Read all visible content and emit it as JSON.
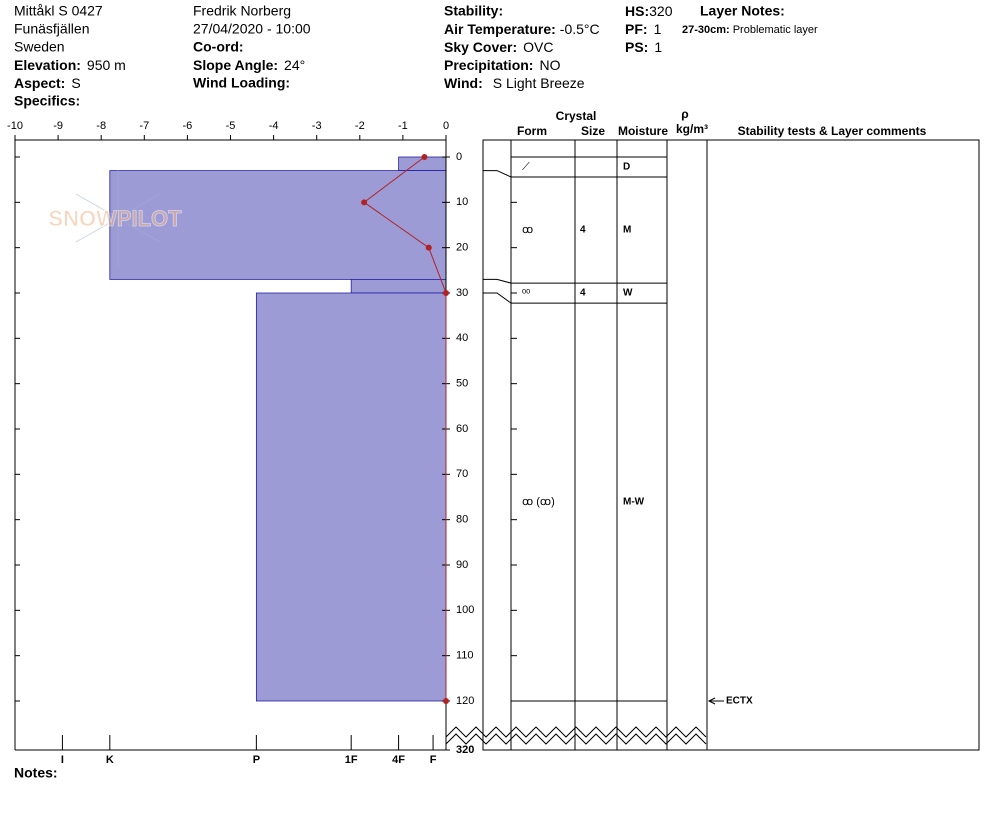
{
  "header": {
    "site": "Mittåkl S 0427",
    "location": "Funäsfjällen",
    "country": "Sweden",
    "elevation": {
      "label": "Elevation:",
      "value": "950 m"
    },
    "aspect": {
      "label": "Aspect:",
      "value": "S"
    },
    "specifics": {
      "label": "Specifics:"
    },
    "observer": "Fredrik Norberg",
    "datetime": "27/04/2020 - 10:00",
    "coord": {
      "label": "Co-ord:"
    },
    "slope_angle": {
      "label": "Slope Angle:",
      "value": "24°"
    },
    "wind_loading": {
      "label": "Wind Loading:"
    },
    "stability": {
      "label": "Stability:"
    },
    "air_temperature": {
      "label": "Air Temperature:",
      "value": "-0.5°C"
    },
    "sky_cover": {
      "label": "Sky Cover:",
      "value": "OVC"
    },
    "precipitation": {
      "label": "Precipitation:",
      "value": "NO"
    },
    "wind": {
      "label": "Wind:",
      "value": "S Light Breeze"
    },
    "hs": {
      "label": "HS:",
      "value": "320"
    },
    "pf": {
      "label": "PF:",
      "value": "1"
    },
    "ps": {
      "label": "PS:",
      "value": "1"
    },
    "layer_notes": {
      "title": "Layer Notes:",
      "items": [
        {
          "range": "27-30cm:",
          "text": "Problematic layer"
        }
      ]
    }
  },
  "logo": "SNOWPILOT",
  "notes": {
    "label": "Notes:"
  },
  "chart_data": {
    "type": "snowprofile",
    "xlim": [
      -10,
      0
    ],
    "xticks": [
      -10,
      -9,
      -8,
      -7,
      -6,
      -5,
      -4,
      -3,
      -2,
      -1,
      0
    ],
    "ylim": [
      0,
      120
    ],
    "yticks": [
      0,
      10,
      20,
      30,
      40,
      50,
      60,
      70,
      80,
      90,
      100,
      110,
      120
    ],
    "ybreak_tick": 320,
    "hardness_ticks": [
      {
        "value": -8.9,
        "label": "I"
      },
      {
        "value": -7.8,
        "label": "K"
      },
      {
        "value": -4.4,
        "label": "P"
      },
      {
        "value": -2.2,
        "label": "1F"
      },
      {
        "value": -1.1,
        "label": "4F"
      },
      {
        "value": -0.3,
        "label": "F"
      }
    ],
    "temperature": {
      "depth": [
        0,
        10,
        20,
        30,
        120
      ],
      "values": [
        -0.5,
        -1.9,
        -0.4,
        0,
        0
      ],
      "color": "#b22222"
    },
    "layer_color": "#9c9bd6",
    "layers": [
      {
        "top": 0,
        "bottom": 3,
        "hardness": "4F",
        "form": "⟋",
        "moisture": "D"
      },
      {
        "top": 3,
        "bottom": 27,
        "hardness": "K",
        "form": "ꝏ",
        "size": "4",
        "moisture": "M"
      },
      {
        "top": 27,
        "bottom": 30,
        "hardness": "1F",
        "form": "ᵒᵒ",
        "size": "4",
        "moisture": "W"
      },
      {
        "top": 30,
        "bottom": 120,
        "hardness": "P",
        "form": "ꝏ (ꝏ)",
        "moisture": "M-W"
      }
    ],
    "tests": [
      {
        "depth": 120,
        "label": "ECTX"
      }
    ],
    "columns": {
      "crystal": "Crystal",
      "form": "Form",
      "size": "Size",
      "moisture": "Moisture",
      "rho": "ρ",
      "density": "kg/m³",
      "comments": "Stability tests & Layer comments"
    }
  }
}
